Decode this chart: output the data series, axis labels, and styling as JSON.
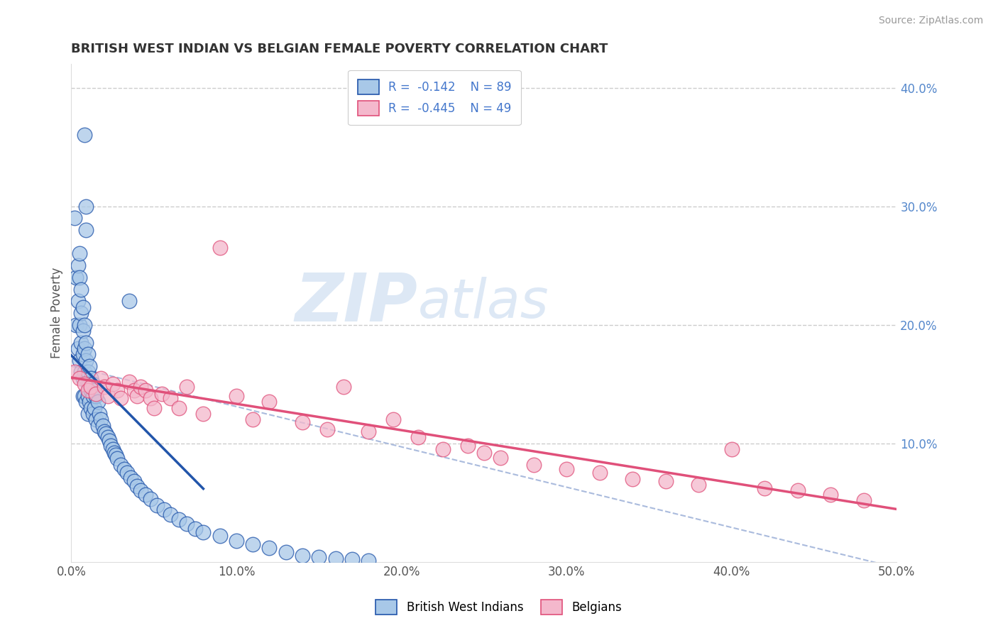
{
  "title": "BRITISH WEST INDIAN VS BELGIAN FEMALE POVERTY CORRELATION CHART",
  "source_text": "Source: ZipAtlas.com",
  "ylabel": "Female Poverty",
  "xmin": 0.0,
  "xmax": 0.5,
  "ymin": 0.0,
  "ymax": 0.42,
  "legend_label1": "British West Indians",
  "legend_label2": "Belgians",
  "r1": -0.142,
  "n1": 89,
  "r2": -0.445,
  "n2": 49,
  "color_blue": "#a8c8e8",
  "color_pink": "#f4b8cc",
  "line_color_blue": "#2255aa",
  "line_color_pink": "#e0507a",
  "dashed_color": "#aabbdd",
  "watermark": "ZIPatlas",
  "background_color": "#ffffff",
  "grid_color": "#cccccc",
  "blue_x": [
    0.002,
    0.003,
    0.003,
    0.004,
    0.004,
    0.004,
    0.005,
    0.005,
    0.005,
    0.005,
    0.006,
    0.006,
    0.006,
    0.006,
    0.007,
    0.007,
    0.007,
    0.007,
    0.007,
    0.008,
    0.008,
    0.008,
    0.008,
    0.009,
    0.009,
    0.009,
    0.009,
    0.01,
    0.01,
    0.01,
    0.01,
    0.01,
    0.011,
    0.011,
    0.011,
    0.012,
    0.012,
    0.012,
    0.013,
    0.013,
    0.013,
    0.014,
    0.014,
    0.015,
    0.015,
    0.016,
    0.016,
    0.017,
    0.018,
    0.019,
    0.02,
    0.021,
    0.022,
    0.023,
    0.024,
    0.025,
    0.026,
    0.027,
    0.028,
    0.03,
    0.032,
    0.034,
    0.036,
    0.038,
    0.04,
    0.042,
    0.045,
    0.048,
    0.052,
    0.056,
    0.06,
    0.065,
    0.07,
    0.075,
    0.08,
    0.09,
    0.1,
    0.11,
    0.12,
    0.13,
    0.14,
    0.15,
    0.16,
    0.17,
    0.18,
    0.008,
    0.009,
    0.009,
    0.035
  ],
  "blue_y": [
    0.29,
    0.24,
    0.2,
    0.25,
    0.22,
    0.18,
    0.26,
    0.24,
    0.2,
    0.17,
    0.23,
    0.21,
    0.185,
    0.16,
    0.215,
    0.195,
    0.175,
    0.155,
    0.14,
    0.2,
    0.18,
    0.16,
    0.14,
    0.185,
    0.17,
    0.155,
    0.135,
    0.175,
    0.16,
    0.15,
    0.14,
    0.125,
    0.165,
    0.15,
    0.135,
    0.155,
    0.145,
    0.13,
    0.15,
    0.14,
    0.125,
    0.145,
    0.13,
    0.14,
    0.12,
    0.135,
    0.115,
    0.125,
    0.12,
    0.115,
    0.11,
    0.108,
    0.105,
    0.102,
    0.098,
    0.095,
    0.092,
    0.09,
    0.087,
    0.082,
    0.078,
    0.075,
    0.071,
    0.068,
    0.064,
    0.06,
    0.057,
    0.053,
    0.048,
    0.044,
    0.04,
    0.036,
    0.032,
    0.028,
    0.025,
    0.022,
    0.018,
    0.015,
    0.012,
    0.008,
    0.005,
    0.004,
    0.003,
    0.002,
    0.001,
    0.36,
    0.3,
    0.28,
    0.22
  ],
  "pink_x": [
    0.002,
    0.005,
    0.008,
    0.01,
    0.012,
    0.015,
    0.018,
    0.02,
    0.022,
    0.025,
    0.028,
    0.03,
    0.035,
    0.038,
    0.04,
    0.042,
    0.045,
    0.048,
    0.05,
    0.055,
    0.06,
    0.065,
    0.07,
    0.08,
    0.09,
    0.1,
    0.11,
    0.12,
    0.14,
    0.155,
    0.165,
    0.18,
    0.195,
    0.21,
    0.225,
    0.24,
    0.25,
    0.26,
    0.28,
    0.3,
    0.32,
    0.34,
    0.36,
    0.38,
    0.4,
    0.42,
    0.44,
    0.46,
    0.48
  ],
  "pink_y": [
    0.16,
    0.155,
    0.15,
    0.145,
    0.148,
    0.142,
    0.155,
    0.148,
    0.14,
    0.15,
    0.145,
    0.138,
    0.152,
    0.145,
    0.14,
    0.148,
    0.145,
    0.138,
    0.13,
    0.142,
    0.138,
    0.13,
    0.148,
    0.125,
    0.265,
    0.14,
    0.12,
    0.135,
    0.118,
    0.112,
    0.148,
    0.11,
    0.12,
    0.105,
    0.095,
    0.098,
    0.092,
    0.088,
    0.082,
    0.078,
    0.075,
    0.07,
    0.068,
    0.065,
    0.095,
    0.062,
    0.06,
    0.057,
    0.052
  ]
}
